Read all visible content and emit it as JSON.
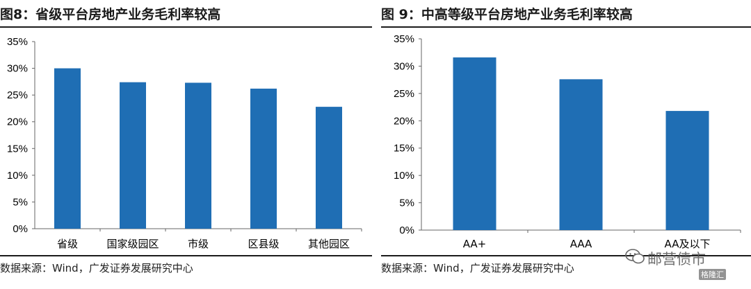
{
  "charts": [
    {
      "title": "图8：省级平台房地产业务毛利率较高",
      "source": "数据来源：Wind，广发证券发展研究中心"
    },
    {
      "title": "图 9：中高等级平台房地产业务毛利率较高",
      "source": "数据来源：Wind，广发证券发展研究中心"
    }
  ],
  "chart_data": [
    {
      "type": "bar",
      "title": "图8：省级平台房地产业务毛利率较高",
      "categories": [
        "省级",
        "国家级园区",
        "市级",
        "区县级",
        "其他园区"
      ],
      "values": [
        30.0,
        27.4,
        27.3,
        26.2,
        22.8
      ],
      "unit": "%",
      "ylim": [
        0,
        35
      ],
      "yticks": [
        "0%",
        "5%",
        "10%",
        "15%",
        "20%",
        "25%",
        "30%",
        "35%"
      ],
      "grid": false,
      "legend": "none",
      "bar_color": "#1F6EB4"
    },
    {
      "type": "bar",
      "title": "图 9：中高等级平台房地产业务毛利率较高",
      "categories": [
        "AA+",
        "AAA",
        "AA及以下"
      ],
      "values": [
        31.6,
        27.6,
        21.8
      ],
      "unit": "%",
      "ylim": [
        0,
        35
      ],
      "yticks": [
        "0%",
        "5%",
        "10%",
        "15%",
        "20%",
        "25%",
        "30%",
        "35%"
      ],
      "grid": false,
      "legend": "none",
      "bar_color": "#1F6EB4"
    }
  ],
  "watermark": {
    "text": "邮营债市",
    "badge": "格隆汇"
  }
}
